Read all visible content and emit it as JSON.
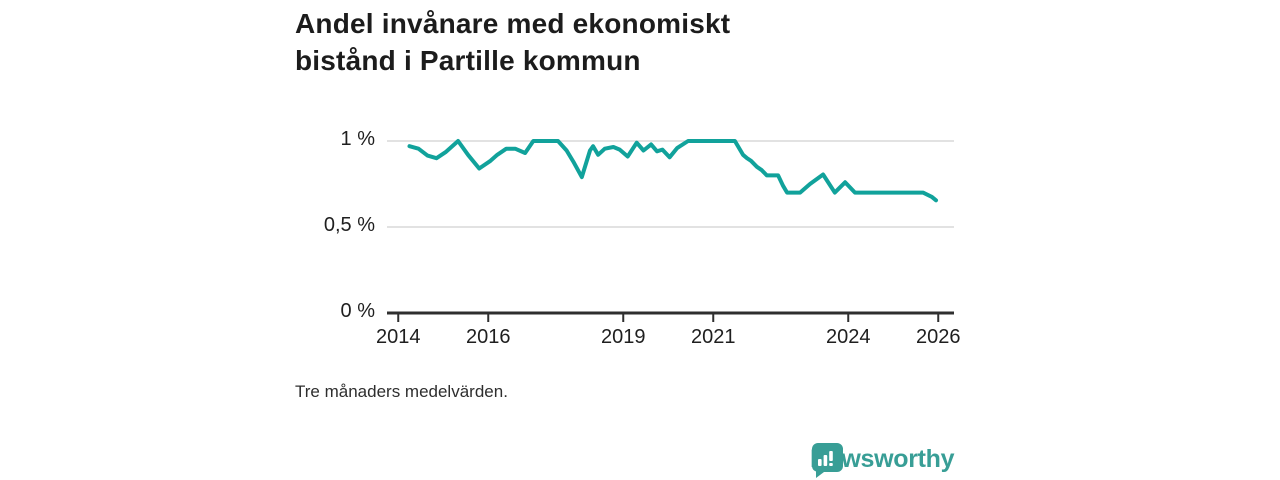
{
  "title": "Andel invånare med ekonomiskt bistånd i Partille kommun",
  "note": "Tre månaders medelvärden.",
  "brand": {
    "name": "Newsworthy",
    "color": "#389e96",
    "icon": "bar-chart-speech-bubble-icon"
  },
  "colors": {
    "line": "#11a29b",
    "grid": "#d9d9d9",
    "axis": "#2f2f2f",
    "title_text": "#1c1c1c",
    "tick_text": "#1f1f1f"
  },
  "chart_data": {
    "type": "line",
    "title": "Andel invånare med ekonomiskt bistånd i Partille kommun",
    "note": "Tre månaders medelvärden.",
    "unit": "%",
    "grid": "horizontal-only",
    "legend": "none",
    "x_axis": {
      "range": [
        2013.75,
        2026.35
      ],
      "ticks": [
        2014,
        2016,
        2019,
        2021,
        2024,
        2026
      ]
    },
    "y_axis": {
      "range": [
        0,
        1.15
      ],
      "ticks": [
        {
          "value": 1,
          "label": "1 %"
        },
        {
          "value": 0.5,
          "label": "0,5 %"
        },
        {
          "value": 0,
          "label": "0 %"
        }
      ]
    },
    "series": [
      {
        "name": "Andel invånare med ekonomiskt bistånd, Partille kommun",
        "color": "#11a29b",
        "points": [
          [
            2014.25,
            0.97
          ],
          [
            2014.45,
            0.955
          ],
          [
            2014.65,
            0.915
          ],
          [
            2014.85,
            0.9
          ],
          [
            2015.05,
            0.935
          ],
          [
            2015.33,
            1.0
          ],
          [
            2015.55,
            0.92
          ],
          [
            2015.8,
            0.84
          ],
          [
            2016.05,
            0.885
          ],
          [
            2016.2,
            0.92
          ],
          [
            2016.4,
            0.955
          ],
          [
            2016.6,
            0.955
          ],
          [
            2016.82,
            0.93
          ],
          [
            2017.0,
            1.0
          ],
          [
            2017.55,
            1.0
          ],
          [
            2017.74,
            0.945
          ],
          [
            2017.89,
            0.88
          ],
          [
            2018.08,
            0.79
          ],
          [
            2018.26,
            0.945
          ],
          [
            2018.33,
            0.97
          ],
          [
            2018.44,
            0.92
          ],
          [
            2018.59,
            0.955
          ],
          [
            2018.78,
            0.965
          ],
          [
            2018.92,
            0.95
          ],
          [
            2019.1,
            0.91
          ],
          [
            2019.3,
            0.99
          ],
          [
            2019.45,
            0.945
          ],
          [
            2019.62,
            0.98
          ],
          [
            2019.75,
            0.94
          ],
          [
            2019.87,
            0.95
          ],
          [
            2020.03,
            0.905
          ],
          [
            2020.2,
            0.96
          ],
          [
            2020.44,
            1.0
          ],
          [
            2021.48,
            1.0
          ],
          [
            2021.66,
            0.92
          ],
          [
            2021.75,
            0.9
          ],
          [
            2021.84,
            0.885
          ],
          [
            2021.97,
            0.85
          ],
          [
            2022.08,
            0.83
          ],
          [
            2022.19,
            0.8
          ],
          [
            2022.44,
            0.8
          ],
          [
            2022.55,
            0.74
          ],
          [
            2022.64,
            0.7
          ],
          [
            2022.93,
            0.7
          ],
          [
            2023.15,
            0.75
          ],
          [
            2023.44,
            0.805
          ],
          [
            2023.7,
            0.7
          ],
          [
            2023.93,
            0.76
          ],
          [
            2024.15,
            0.7
          ],
          [
            2025.66,
            0.7
          ],
          [
            2025.86,
            0.675
          ],
          [
            2025.95,
            0.655
          ]
        ]
      }
    ]
  }
}
